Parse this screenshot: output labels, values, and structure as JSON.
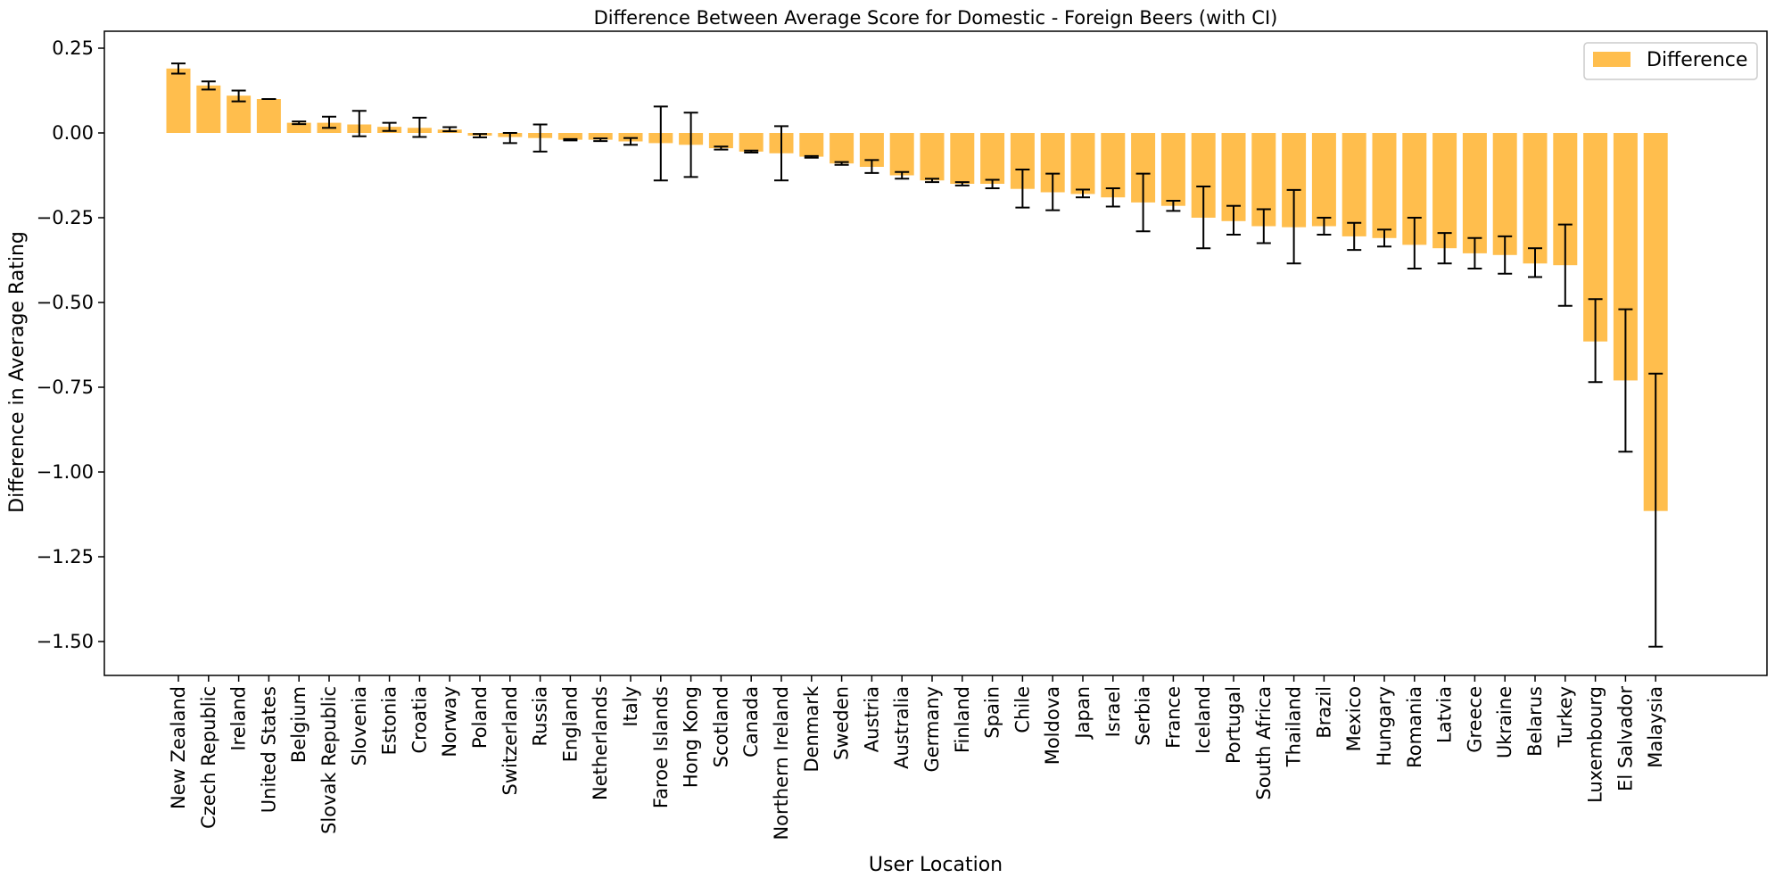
{
  "chart_data": {
    "type": "bar",
    "title": "Difference Between Average Score for Domestic - Foreign Beers (with CI)",
    "xlabel": "User Location",
    "ylabel": "Difference in Average Rating",
    "ylim": [
      -1.6,
      0.3
    ],
    "yticks": [
      0.25,
      0.0,
      -0.25,
      -0.5,
      -0.75,
      -1.0,
      -1.25,
      -1.5
    ],
    "ytick_labels": [
      "0.25",
      "0.00",
      "−0.25",
      "−0.50",
      "−0.75",
      "−1.00",
      "−1.25",
      "−1.50"
    ],
    "grid": false,
    "legend_position": "top-right",
    "bar_color": "#ffbe4d",
    "errorbar_color": "#000000",
    "series": [
      {
        "name": "Difference",
        "categories": [
          "New Zealand",
          "Czech Republic",
          "Ireland",
          "United States",
          "Belgium",
          "Slovak Republic",
          "Slovenia",
          "Estonia",
          "Croatia",
          "Norway",
          "Poland",
          "Switzerland",
          "Russia",
          "England",
          "Netherlands",
          "Italy",
          "Faroe Islands",
          "Hong Kong",
          "Scotland",
          "Canada",
          "Northern Ireland",
          "Denmark",
          "Sweden",
          "Austria",
          "Australia",
          "Germany",
          "Finland",
          "Spain",
          "Chile",
          "Moldova",
          "Japan",
          "Israel",
          "Serbia",
          "France",
          "Iceland",
          "Portugal",
          "South Africa",
          "Thailand",
          "Brazil",
          "Mexico",
          "Hungary",
          "Romania",
          "Latvia",
          "Greece",
          "Ukraine",
          "Belarus",
          "Turkey",
          "Luxembourg",
          "El Salvador",
          "Malaysia"
        ],
        "values": [
          0.19,
          0.14,
          0.11,
          0.1,
          0.03,
          0.03,
          0.025,
          0.018,
          0.015,
          0.01,
          -0.008,
          -0.012,
          -0.015,
          -0.02,
          -0.02,
          -0.025,
          -0.03,
          -0.035,
          -0.045,
          -0.055,
          -0.06,
          -0.07,
          -0.09,
          -0.1,
          -0.125,
          -0.14,
          -0.15,
          -0.15,
          -0.165,
          -0.175,
          -0.18,
          -0.19,
          -0.205,
          -0.215,
          -0.25,
          -0.26,
          -0.275,
          -0.278,
          -0.275,
          -0.305,
          -0.31,
          -0.33,
          -0.34,
          -0.355,
          -0.36,
          -0.385,
          -0.39,
          -0.615,
          -0.73,
          -1.115
        ],
        "ci_lower": [
          0.175,
          0.128,
          0.093,
          0.1,
          0.026,
          0.015,
          -0.01,
          0.006,
          -0.012,
          0.005,
          -0.013,
          -0.03,
          -0.055,
          -0.022,
          -0.024,
          -0.035,
          -0.14,
          -0.13,
          -0.049,
          -0.058,
          -0.14,
          -0.073,
          -0.094,
          -0.118,
          -0.135,
          -0.145,
          -0.155,
          -0.163,
          -0.22,
          -0.228,
          -0.19,
          -0.217,
          -0.29,
          -0.23,
          -0.34,
          -0.3,
          -0.325,
          -0.385,
          -0.3,
          -0.345,
          -0.335,
          -0.4,
          -0.385,
          -0.4,
          -0.415,
          -0.425,
          -0.51,
          -0.735,
          -0.94,
          -1.515
        ],
        "ci_upper": [
          0.205,
          0.152,
          0.125,
          0.1,
          0.034,
          0.048,
          0.065,
          0.03,
          0.045,
          0.017,
          -0.003,
          0.0,
          0.025,
          -0.018,
          -0.016,
          -0.015,
          0.078,
          0.06,
          -0.04,
          -0.052,
          0.02,
          -0.068,
          -0.086,
          -0.08,
          -0.115,
          -0.135,
          -0.145,
          -0.138,
          -0.108,
          -0.12,
          -0.167,
          -0.163,
          -0.12,
          -0.2,
          -0.158,
          -0.215,
          -0.225,
          -0.168,
          -0.25,
          -0.265,
          -0.285,
          -0.25,
          -0.295,
          -0.31,
          -0.305,
          -0.34,
          -0.27,
          -0.49,
          -0.52,
          -0.71
        ]
      }
    ]
  }
}
